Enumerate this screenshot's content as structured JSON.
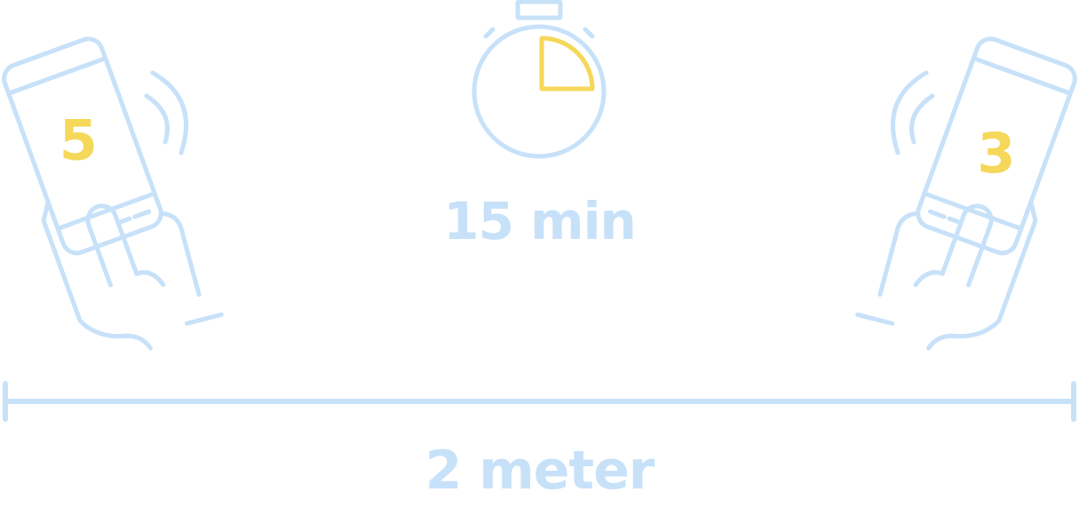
{
  "colors": {
    "outline": "#c7e1f9",
    "accent": "#f5d75a",
    "background": "#ffffff"
  },
  "timer": {
    "icon": "stopwatch-icon",
    "duration_label": "15 min",
    "elapsed_fraction": 0.25
  },
  "phones": {
    "left": {
      "icon": "hand-holding-phone-icon",
      "number": "5"
    },
    "right": {
      "icon": "hand-holding-phone-icon",
      "number": "3"
    }
  },
  "distance": {
    "icon": "distance-ruler-icon",
    "label": "2 meter"
  }
}
